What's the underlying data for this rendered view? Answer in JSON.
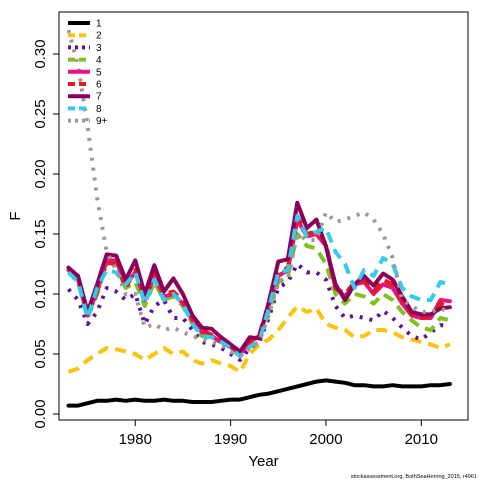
{
  "chart_data": {
    "type": "line",
    "xlabel": "Year",
    "ylabel": "F",
    "xlim": [
      1972.0,
      2014.9
    ],
    "ylim": [
      -0.005,
      0.335
    ],
    "xticks": [
      1980,
      1990,
      2000,
      2010
    ],
    "yticks": [
      0.0,
      0.05,
      0.1,
      0.15,
      0.2,
      0.25,
      0.3
    ],
    "ytick_labels": [
      "0.00",
      "0.05",
      "0.10",
      "0.15",
      "0.20",
      "0.25",
      "0.30"
    ],
    "grid": false,
    "legend_position": "top-left",
    "credit": "stockassessment.org, BothSeaHerring_2015, r4961",
    "x": [
      1973,
      1974,
      1975,
      1976,
      1977,
      1978,
      1979,
      1980,
      1981,
      1982,
      1983,
      1984,
      1985,
      1986,
      1987,
      1988,
      1989,
      1990,
      1991,
      1992,
      1993,
      1994,
      1995,
      1996,
      1997,
      1998,
      1999,
      2000,
      2001,
      2002,
      2003,
      2004,
      2005,
      2006,
      2007,
      2008,
      2009,
      2010,
      2011,
      2012,
      2013
    ],
    "series": [
      {
        "name": "1",
        "color": "#000000",
        "dash": "solid",
        "values": [
          0.007,
          0.007,
          0.009,
          0.011,
          0.011,
          0.012,
          0.011,
          0.012,
          0.011,
          0.011,
          0.012,
          0.011,
          0.011,
          0.01,
          0.01,
          0.01,
          0.011,
          0.012,
          0.012,
          0.014,
          0.016,
          0.017,
          0.019,
          0.021,
          0.023,
          0.025,
          0.027,
          0.028,
          0.027,
          0.026,
          0.024,
          0.024,
          0.023,
          0.023,
          0.024,
          0.023,
          0.023,
          0.023,
          0.024,
          0.024,
          0.025
        ]
      },
      {
        "name": "2",
        "color": "#FFC20A",
        "dash": "dash",
        "values": [
          0.035,
          0.038,
          0.045,
          0.05,
          0.055,
          0.054,
          0.052,
          0.05,
          0.045,
          0.05,
          0.055,
          0.05,
          0.052,
          0.045,
          0.042,
          0.045,
          0.042,
          0.04,
          0.035,
          0.05,
          0.058,
          0.062,
          0.07,
          0.08,
          0.09,
          0.085,
          0.088,
          0.075,
          0.072,
          0.07,
          0.064,
          0.065,
          0.07,
          0.07,
          0.068,
          0.064,
          0.062,
          0.06,
          0.058,
          0.055,
          0.058
        ]
      },
      {
        "name": "3",
        "color": "#5E0E9E",
        "dash": "dot",
        "values": [
          0.104,
          0.095,
          0.075,
          0.085,
          0.105,
          0.102,
          0.095,
          0.1,
          0.075,
          0.09,
          0.095,
          0.08,
          0.08,
          0.07,
          0.06,
          0.058,
          0.055,
          0.05,
          0.045,
          0.055,
          0.06,
          0.08,
          0.105,
          0.11,
          0.125,
          0.118,
          0.118,
          0.112,
          0.09,
          0.08,
          0.082,
          0.08,
          0.078,
          0.086,
          0.08,
          0.072,
          0.065,
          0.062,
          0.068,
          0.074,
          0.074
        ]
      },
      {
        "name": "4",
        "color": "#7DC21E",
        "dash": "dash",
        "values": [
          0.12,
          0.11,
          0.08,
          0.1,
          0.125,
          0.128,
          0.105,
          0.11,
          0.09,
          0.11,
          0.095,
          0.098,
          0.09,
          0.075,
          0.065,
          0.063,
          0.06,
          0.055,
          0.05,
          0.058,
          0.062,
          0.085,
          0.11,
          0.115,
          0.15,
          0.14,
          0.138,
          0.125,
          0.1,
          0.092,
          0.1,
          0.098,
          0.092,
          0.1,
          0.095,
          0.085,
          0.078,
          0.072,
          0.07,
          0.08,
          0.078
        ]
      },
      {
        "name": "5",
        "color": "#E8137F",
        "dash": "solid",
        "values": [
          0.12,
          0.112,
          0.082,
          0.102,
          0.128,
          0.128,
          0.108,
          0.118,
          0.095,
          0.115,
          0.098,
          0.1,
          0.092,
          0.078,
          0.068,
          0.065,
          0.06,
          0.056,
          0.05,
          0.06,
          0.065,
          0.09,
          0.115,
          0.12,
          0.162,
          0.148,
          0.15,
          0.14,
          0.105,
          0.098,
          0.108,
          0.11,
          0.1,
          0.108,
          0.105,
          0.092,
          0.082,
          0.08,
          0.08,
          0.095,
          0.094
        ]
      },
      {
        "name": "6",
        "color": "#E31A1C",
        "dash": "dash",
        "values": [
          0.12,
          0.112,
          0.082,
          0.102,
          0.126,
          0.125,
          0.105,
          0.12,
          0.095,
          0.118,
          0.1,
          0.102,
          0.094,
          0.08,
          0.07,
          0.066,
          0.062,
          0.056,
          0.05,
          0.061,
          0.066,
          0.092,
          0.118,
          0.122,
          0.165,
          0.15,
          0.152,
          0.142,
          0.105,
          0.1,
          0.11,
          0.112,
          0.102,
          0.112,
          0.108,
          0.094,
          0.084,
          0.08,
          0.082,
          0.092,
          0.089
        ]
      },
      {
        "name": "7",
        "color": "#8B005A",
        "dash": "solid",
        "values": [
          0.122,
          0.115,
          0.085,
          0.108,
          0.133,
          0.132,
          0.112,
          0.128,
          0.1,
          0.124,
          0.102,
          0.113,
          0.1,
          0.082,
          0.072,
          0.071,
          0.064,
          0.058,
          0.052,
          0.064,
          0.063,
          0.093,
          0.127,
          0.129,
          0.176,
          0.155,
          0.162,
          0.14,
          0.108,
          0.095,
          0.108,
          0.115,
          0.107,
          0.117,
          0.112,
          0.098,
          0.085,
          0.083,
          0.083,
          0.088,
          0.089
        ]
      },
      {
        "name": "8",
        "color": "#33CCEE",
        "dash": "dash",
        "values": [
          0.118,
          0.11,
          0.08,
          0.105,
          0.12,
          0.118,
          0.108,
          0.118,
          0.092,
          0.112,
          0.095,
          0.1,
          0.092,
          0.075,
          0.065,
          0.064,
          0.06,
          0.055,
          0.048,
          0.056,
          0.06,
          0.088,
          0.118,
          0.12,
          0.165,
          0.148,
          0.152,
          0.155,
          0.135,
          0.125,
          0.105,
          0.12,
          0.115,
          0.13,
          0.125,
          0.105,
          0.098,
          0.095,
          0.095,
          0.11,
          0.108
        ]
      },
      {
        "name": "9+",
        "color": "#999999",
        "dash": "dot",
        "values": [
          0.32,
          0.29,
          0.24,
          0.18,
          0.135,
          0.12,
          0.1,
          0.1,
          0.072,
          0.075,
          0.07,
          0.072,
          0.068,
          0.065,
          0.062,
          0.06,
          0.058,
          0.052,
          0.048,
          0.055,
          0.06,
          0.082,
          0.11,
          0.112,
          0.15,
          0.145,
          0.145,
          0.168,
          0.16,
          0.162,
          0.165,
          0.168,
          0.162,
          0.15,
          0.13,
          0.095,
          0.09,
          0.085,
          0.085,
          0.088,
          0.085
        ]
      }
    ]
  }
}
